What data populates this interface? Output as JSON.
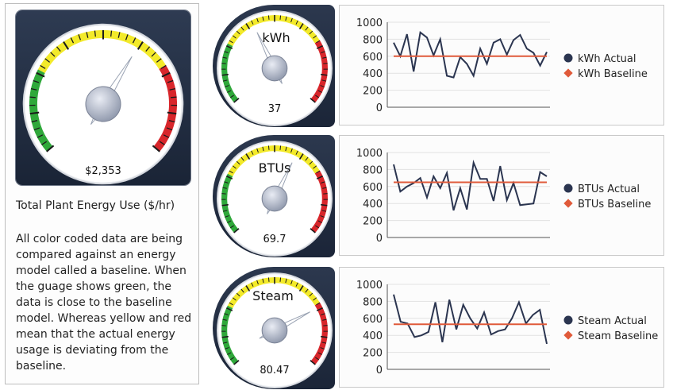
{
  "left": {
    "big_gauge": {
      "value_label": "$2,353",
      "level": 0.62
    },
    "title": "Total Plant Energy Use ($/hr)",
    "description": "All color coded data are being compared against an energy model called a baseline. When the guage shows green, the data is close to the baseline model. Whereas yellow and red mean that the actual energy usage is deviating from the baseline."
  },
  "gauges": [
    {
      "label": "kWh",
      "value_label": "37",
      "level": 0.4
    },
    {
      "label": "BTUs",
      "value_label": "69.7",
      "level": 0.6
    },
    {
      "label": "Steam",
      "value_label": "80.47",
      "level": 0.74
    }
  ],
  "colors": {
    "actual": "#2b3550",
    "baseline": "#e05a3a",
    "green": "#2fa83a",
    "yellow": "#f3ea2a",
    "red": "#d8262b"
  },
  "chart_data": [
    {
      "type": "line",
      "ylim": [
        0,
        1000
      ],
      "yticks": [
        "0",
        "200",
        "400",
        "600",
        "800",
        "1000"
      ],
      "series": [
        {
          "name": "kWh Actual",
          "values": [
            760,
            600,
            860,
            420,
            880,
            820,
            610,
            800,
            370,
            350,
            590,
            510,
            370,
            690,
            510,
            760,
            800,
            620,
            790,
            850,
            690,
            640,
            490,
            650
          ]
        },
        {
          "name": "kWh Baseline",
          "values": [
            600,
            600,
            600,
            600,
            600,
            600,
            600,
            600,
            600,
            600,
            600,
            600,
            600,
            600,
            600,
            600,
            600,
            600,
            600,
            600,
            600,
            600,
            600,
            600
          ]
        }
      ]
    },
    {
      "type": "line",
      "ylim": [
        0,
        1000
      ],
      "yticks": [
        "0",
        "200",
        "400",
        "600",
        "800",
        "1000"
      ],
      "series": [
        {
          "name": "BTUs Actual",
          "values": [
            860,
            540,
            600,
            640,
            700,
            470,
            720,
            580,
            760,
            320,
            580,
            330,
            880,
            690,
            690,
            430,
            840,
            440,
            640,
            380,
            390,
            400,
            770,
            720
          ]
        },
        {
          "name": "BTUs Baseline",
          "values": [
            650,
            650,
            650,
            650,
            650,
            650,
            650,
            650,
            650,
            650,
            650,
            650,
            650,
            650,
            650,
            650,
            650,
            650,
            650,
            650,
            650,
            650,
            650,
            650
          ]
        }
      ]
    },
    {
      "type": "line",
      "ylim": [
        0,
        1000
      ],
      "yticks": [
        "0",
        "200",
        "400",
        "600",
        "800",
        "1000"
      ],
      "series": [
        {
          "name": "Steam Actual",
          "values": [
            880,
            560,
            540,
            380,
            400,
            440,
            790,
            320,
            820,
            470,
            760,
            600,
            480,
            670,
            410,
            450,
            470,
            600,
            790,
            540,
            640,
            700,
            300
          ]
        },
        {
          "name": "Steam Baseline",
          "values": [
            530,
            530,
            530,
            530,
            530,
            530,
            530,
            530,
            530,
            530,
            530,
            530,
            530,
            530,
            530,
            530,
            530,
            530,
            530,
            530,
            530,
            530,
            530
          ]
        }
      ]
    }
  ]
}
